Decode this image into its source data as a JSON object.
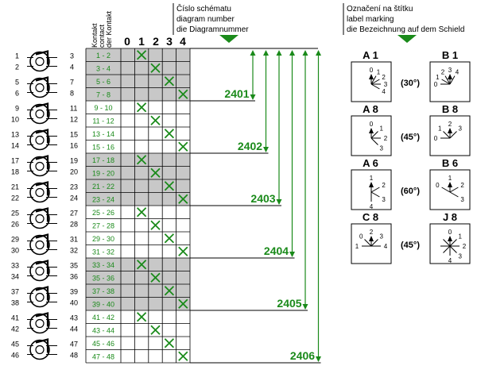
{
  "colors": {
    "green": "#1a8a1a",
    "gray": "#c8c8c8",
    "black": "#000000"
  },
  "contact_header": [
    "Kontakt",
    "contact",
    "der Kontakt"
  ],
  "position_columns": [
    "0",
    "1",
    "2",
    "3",
    "4"
  ],
  "diagram_header": [
    "Číslo schématu",
    "diagram number",
    "die Diagramnummer"
  ],
  "label_header": [
    "Označení na štítku",
    "label marking",
    "die Bezeichnung auf dem Schield"
  ],
  "rows": [
    {
      "label": "1 - 2",
      "pos": 1,
      "shaded": true
    },
    {
      "label": "3 - 4",
      "pos": 2,
      "shaded": true
    },
    {
      "label": "5 - 6",
      "pos": 3,
      "shaded": true
    },
    {
      "label": "7 - 8",
      "pos": 4,
      "shaded": true
    },
    {
      "label": "9 - 10",
      "pos": 1,
      "shaded": false
    },
    {
      "label": "11 - 12",
      "pos": 2,
      "shaded": false
    },
    {
      "label": "13 - 14",
      "pos": 3,
      "shaded": false
    },
    {
      "label": "15 - 16",
      "pos": 4,
      "shaded": false
    },
    {
      "label": "17 - 18",
      "pos": 1,
      "shaded": true
    },
    {
      "label": "19 - 20",
      "pos": 2,
      "shaded": true
    },
    {
      "label": "21 - 22",
      "pos": 3,
      "shaded": true
    },
    {
      "label": "23 - 24",
      "pos": 4,
      "shaded": true
    },
    {
      "label": "25 - 26",
      "pos": 1,
      "shaded": false
    },
    {
      "label": "27 - 28",
      "pos": 2,
      "shaded": false
    },
    {
      "label": "29 - 30",
      "pos": 3,
      "shaded": false
    },
    {
      "label": "31 - 32",
      "pos": 4,
      "shaded": false
    },
    {
      "label": "33 - 34",
      "pos": 1,
      "shaded": true
    },
    {
      "label": "35 - 36",
      "pos": 2,
      "shaded": true
    },
    {
      "label": "37 - 38",
      "pos": 3,
      "shaded": true
    },
    {
      "label": "39 - 40",
      "pos": 4,
      "shaded": true
    },
    {
      "label": "41 - 42",
      "pos": 1,
      "shaded": false
    },
    {
      "label": "43 - 44",
      "pos": 2,
      "shaded": false
    },
    {
      "label": "45 - 46",
      "pos": 3,
      "shaded": false
    },
    {
      "label": "47 - 48",
      "pos": 4,
      "shaded": false
    }
  ],
  "wafers": [
    {
      "tl": "1",
      "bl": "2",
      "tr": "3",
      "br": "4"
    },
    {
      "tl": "5",
      "bl": "6",
      "tr": "7",
      "br": "8"
    },
    {
      "tl": "9",
      "bl": "10",
      "tr": "11",
      "br": "12"
    },
    {
      "tl": "13",
      "bl": "14",
      "tr": "15",
      "br": "16"
    },
    {
      "tl": "17",
      "bl": "18",
      "tr": "19",
      "br": "20"
    },
    {
      "tl": "21",
      "bl": "22",
      "tr": "23",
      "br": "24"
    },
    {
      "tl": "25",
      "bl": "26",
      "tr": "27",
      "br": "28"
    },
    {
      "tl": "29",
      "bl": "30",
      "tr": "31",
      "br": "32"
    },
    {
      "tl": "33",
      "bl": "34",
      "tr": "35",
      "br": "36"
    },
    {
      "tl": "37",
      "bl": "38",
      "tr": "39",
      "br": "40"
    },
    {
      "tl": "41",
      "bl": "42",
      "tr": "43",
      "br": "44"
    },
    {
      "tl": "45",
      "bl": "46",
      "tr": "47",
      "br": "48"
    }
  ],
  "diagrams": [
    {
      "number": "2401",
      "last_row": 3
    },
    {
      "number": "2402",
      "last_row": 7
    },
    {
      "number": "2403",
      "last_row": 11
    },
    {
      "number": "2404",
      "last_row": 15
    },
    {
      "number": "2405",
      "last_row": 19
    },
    {
      "number": "2406",
      "last_row": 23
    }
  ],
  "labels": [
    {
      "left": {
        "name": "A 1",
        "positions": [
          "0",
          "1",
          "2",
          "3",
          "4"
        ]
      },
      "angle": "(30°)",
      "right": {
        "name": "B 1",
        "positions": [
          "0",
          "1",
          "2",
          "3",
          "4"
        ]
      }
    },
    {
      "left": {
        "name": "A 8",
        "positions": [
          "0",
          "1",
          "2",
          "3"
        ]
      },
      "angle": "(45°)",
      "right": {
        "name": "B 8",
        "positions": [
          "0",
          "1",
          "2",
          "3"
        ]
      }
    },
    {
      "left": {
        "name": "A 6",
        "positions": [
          "1",
          "2",
          "3",
          "4"
        ]
      },
      "angle": "(60°)",
      "right": {
        "name": "B 6",
        "positions": [
          "0",
          "1",
          "2",
          "3"
        ]
      }
    },
    {
      "left": {
        "name": "C 8",
        "positions": [
          "1",
          "0",
          "2",
          "3",
          "4"
        ]
      },
      "angle": "(45°)",
      "right": {
        "name": "J 8",
        "positions": [
          "0",
          "1",
          "2",
          "3",
          "4"
        ]
      }
    }
  ]
}
